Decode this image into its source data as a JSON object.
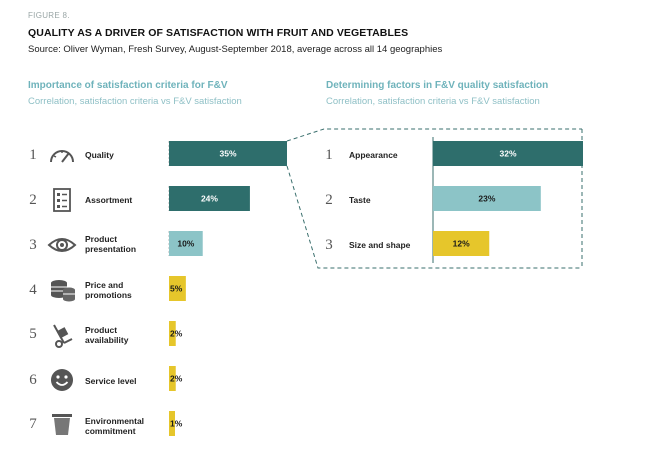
{
  "figure_label": "FIGURE 8.",
  "title": "QUALITY AS A DRIVER OF SATISFACTION WITH FRUIT AND VEGETABLES",
  "source": "Source: Oliver Wyman, Fresh Survey, August-September 2018, average across all 14 geographies",
  "colors": {
    "dark": "#2e6e6c",
    "mid": "#8cc4c7",
    "yellow": "#e6c62b",
    "accent_text": "#6fb3bb"
  },
  "chart_data": [
    {
      "type": "bar",
      "title": "Importance of satisfaction criteria for F&V",
      "subtitle": "Correlation, satisfaction criteria vs F&V satisfaction",
      "orientation": "horizontal",
      "ranks": [
        "1",
        "2",
        "3",
        "4",
        "5",
        "6",
        "7"
      ],
      "categories": [
        "Quality",
        "Assortment",
        "Product presentation",
        "Price and promotions",
        "Product availability",
        "Service level",
        "Environmental commitment"
      ],
      "icons": [
        "speedometer-icon",
        "checklist-icon",
        "eye-icon",
        "coins-icon",
        "hand-truck-icon",
        "smiley-icon",
        "bin-icon"
      ],
      "values": [
        35,
        24,
        10,
        5,
        2,
        2,
        1
      ],
      "labels": [
        "35%",
        "24%",
        "10%",
        "5%",
        "2%",
        "2%",
        "1%"
      ],
      "bar_colors": [
        "dark",
        "dark",
        "mid",
        "yellow",
        "yellow",
        "yellow",
        "yellow"
      ]
    },
    {
      "type": "bar",
      "title": "Determining factors in F&V quality satisfaction",
      "subtitle": "Correlation, satisfaction criteria vs F&V satisfaction",
      "orientation": "horizontal",
      "ranks": [
        "1",
        "2",
        "3"
      ],
      "categories": [
        "Appearance",
        "Taste",
        "Size and shape"
      ],
      "values": [
        32,
        23,
        12
      ],
      "labels": [
        "32%",
        "23%",
        "12%"
      ],
      "bar_colors": [
        "dark",
        "mid",
        "yellow"
      ]
    }
  ]
}
